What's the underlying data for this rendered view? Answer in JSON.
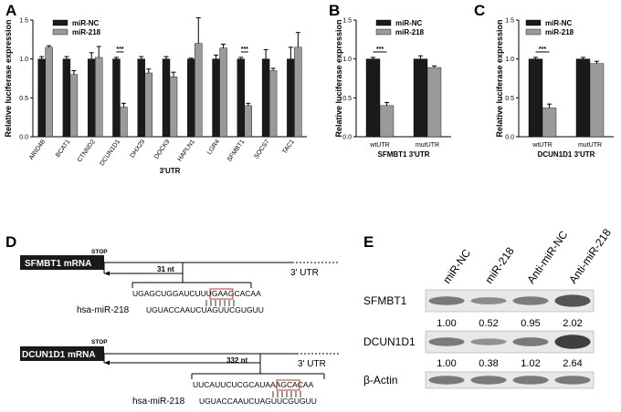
{
  "panels": {
    "A": "A",
    "B": "B",
    "C": "C",
    "D": "D",
    "E": "E"
  },
  "colors": {
    "nc": "#1a1a1a",
    "mir": "#9a9a9a"
  },
  "chart_data": [
    {
      "type": "bar",
      "panel": "A",
      "categories": [
        "ARID4B",
        "BCAT1",
        "CTNND2",
        "DCUN1D1",
        "DHX29",
        "DOCK9",
        "HAPLN1",
        "LGR4",
        "SFMBT1",
        "SOCS7",
        "TAC1"
      ],
      "series": [
        {
          "name": "miR-NC",
          "values": [
            1.0,
            1.0,
            1.0,
            1.0,
            1.0,
            1.0,
            1.0,
            1.0,
            1.0,
            1.0,
            1.0
          ],
          "errors": [
            0.03,
            0.03,
            0.08,
            0.02,
            0.03,
            0.03,
            0.01,
            0.05,
            0.02,
            0.12,
            0.15
          ]
        },
        {
          "name": "miR-218",
          "values": [
            1.15,
            0.8,
            1.02,
            0.38,
            0.82,
            0.77,
            1.2,
            1.14,
            0.4,
            0.85,
            1.15
          ],
          "errors": [
            0.02,
            0.05,
            0.14,
            0.05,
            0.05,
            0.06,
            0.33,
            0.05,
            0.03,
            0.03,
            0.19
          ]
        }
      ],
      "sig": [
        {
          "index": 3,
          "label": "***"
        },
        {
          "index": 8,
          "label": "***"
        }
      ],
      "xlabel": "3'UTR",
      "ylabel": "Relative luciferase expression",
      "ylim": [
        0,
        1.5
      ],
      "yticks": [
        "0.0",
        "0.5",
        "1.0",
        "1.5"
      ],
      "legend": "top-left"
    },
    {
      "type": "bar",
      "panel": "B",
      "categories": [
        "wtUTR",
        "mutUTR"
      ],
      "series": [
        {
          "name": "miR-NC",
          "values": [
            1.0,
            1.0
          ],
          "errors": [
            0.02,
            0.04
          ]
        },
        {
          "name": "miR-218",
          "values": [
            0.4,
            0.89
          ],
          "errors": [
            0.04,
            0.02
          ]
        }
      ],
      "sig": [
        {
          "index": 0,
          "label": "***"
        }
      ],
      "xlabel": "SFMBT1 3'UTR",
      "ylabel": "Relative luciferase expression",
      "ylim": [
        0,
        1.5
      ],
      "yticks": [
        "0.0",
        "0.5",
        "1.0",
        "1.5"
      ],
      "legend": "top-right"
    },
    {
      "type": "bar",
      "panel": "C",
      "categories": [
        "wtUTR",
        "mutUTR"
      ],
      "series": [
        {
          "name": "miR-NC",
          "values": [
            1.0,
            1.0
          ],
          "errors": [
            0.02,
            0.02
          ]
        },
        {
          "name": "miR-218",
          "values": [
            0.37,
            0.94
          ],
          "errors": [
            0.05,
            0.03
          ]
        }
      ],
      "sig": [
        {
          "index": 0,
          "label": "***"
        }
      ],
      "xlabel": "DCUN1D1 3'UTR",
      "ylabel": "Relative luciferase expression",
      "ylim": [
        0,
        1.5
      ],
      "yticks": [
        "0.0",
        "0.5",
        "1.0",
        "1.5"
      ],
      "legend": "top-right"
    }
  ],
  "panelD": {
    "genes": [
      {
        "name": "SFMBT1 mRNA",
        "stop": "STOP",
        "distance": "31 nt",
        "utr": "3' UTR",
        "utr_seq_prefix": "UGAGCUGGAUCUUUGAA",
        "utr_seq_site": "GCACA",
        "utr_seq_suffix": "A",
        "mirna_label": "hsa-miR-218",
        "mirna_seq": "UGUACCAAUCUAGUUCGUGUU"
      },
      {
        "name": "DCUN1D1 mRNA",
        "stop": "STOP",
        "distance": "332 nt",
        "utr": "3' UTR",
        "utr_seq_prefix": "UUCAUUCUCGCAUAAA",
        "utr_seq_site": "GCACA",
        "utr_seq_suffix": "A",
        "mirna_label": "hsa-miR-218",
        "mirna_seq": "UGUACCAAUCUAGUUCGUGUU"
      }
    ]
  },
  "panelE": {
    "lanes": [
      "miR-NC",
      "miR-218",
      "Anti-miR-NC",
      "Anti-miR-218"
    ],
    "blots": [
      {
        "label": "SFMBT1",
        "values": [
          "1.00",
          "0.52",
          "0.95",
          "2.02"
        ],
        "density": [
          1.0,
          0.52,
          0.95,
          2.02
        ]
      },
      {
        "label": "DCUN1D1",
        "values": [
          "1.00",
          "0.38",
          "1.02",
          "2.64"
        ],
        "density": [
          1.0,
          0.38,
          1.02,
          2.64
        ]
      },
      {
        "label": "β-Actin",
        "values": [],
        "density": [
          1,
          1,
          1,
          1
        ]
      }
    ]
  }
}
